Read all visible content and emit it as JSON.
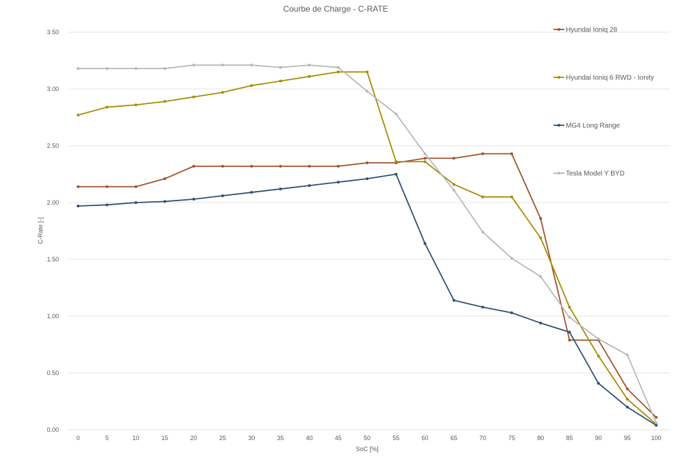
{
  "chart_data": {
    "type": "line",
    "title": "Courbe de Charge - C-RATE",
    "xlabel": "SoC [%]",
    "ylabel": "C-Rate [-]",
    "x": [
      0,
      5,
      10,
      15,
      20,
      25,
      30,
      35,
      40,
      45,
      50,
      55,
      60,
      65,
      70,
      75,
      80,
      85,
      90,
      95,
      100
    ],
    "y_ticks": [
      "0.00",
      "0.50",
      "1.00",
      "1.50",
      "2.00",
      "2.50",
      "3.00",
      "3.50"
    ],
    "ylim": [
      0,
      3.5
    ],
    "grid": true,
    "legend_position": "right",
    "series": [
      {
        "name": "Hyundai Ioniq 28",
        "color": "#a0522d",
        "values": [
          2.14,
          2.14,
          2.14,
          2.21,
          2.32,
          2.32,
          2.32,
          2.32,
          2.32,
          2.32,
          2.35,
          2.35,
          2.39,
          2.39,
          2.43,
          2.43,
          1.86,
          0.79,
          0.79,
          0.36,
          0.11
        ]
      },
      {
        "name": "Hyundai Ioniq 6 RWD - Ionity",
        "color": "#a68a00",
        "values": [
          2.77,
          2.84,
          2.86,
          2.89,
          2.93,
          2.97,
          3.03,
          3.07,
          3.11,
          3.15,
          3.15,
          2.36,
          2.36,
          2.16,
          2.05,
          2.05,
          1.69,
          1.08,
          0.65,
          0.27,
          0.05
        ]
      },
      {
        "name": "MG4 Long Range",
        "color": "#2e4f73",
        "values": [
          1.97,
          1.98,
          2.0,
          2.01,
          2.03,
          2.06,
          2.09,
          2.12,
          2.15,
          2.18,
          2.21,
          2.25,
          1.64,
          1.14,
          1.08,
          1.03,
          0.94,
          0.86,
          0.41,
          0.2,
          0.04
        ]
      },
      {
        "name": "Tesla Model Y BYD",
        "color": "#b7b7b7",
        "values": [
          3.18,
          3.18,
          3.18,
          3.18,
          3.21,
          3.21,
          3.21,
          3.19,
          3.21,
          3.19,
          2.98,
          2.78,
          2.43,
          2.11,
          1.74,
          1.51,
          1.35,
          0.99,
          0.8,
          0.66,
          0.06
        ]
      }
    ]
  }
}
